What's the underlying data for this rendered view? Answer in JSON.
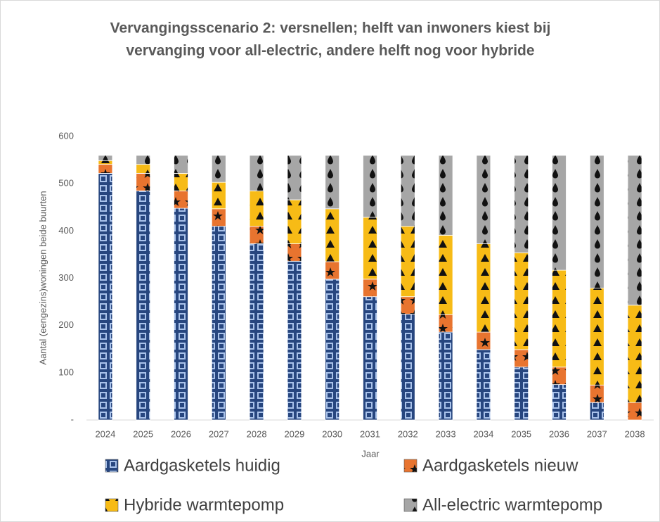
{
  "chart_data": {
    "type": "stacked-bar",
    "title": [
      "Vervangingsscenario 2: versnellen; helft van inwoners kiest bij",
      "vervanging voor all-electric, andere helft nog voor hybride"
    ],
    "x_label": "Jaar",
    "y_label": "Aantal (eengezins)woningen beide buurten",
    "categories": [
      "2024",
      "2025",
      "2026",
      "2027",
      "2028",
      "2029",
      "2030",
      "2031",
      "2032",
      "2033",
      "2034",
      "2035",
      "2036",
      "2037",
      "2038"
    ],
    "series": [
      {
        "name": "Aardgasketels huidig",
        "color": "#27467f",
        "values": [
          522,
          485,
          448,
          410,
          373,
          336,
          298,
          261,
          224,
          186,
          149,
          112,
          75,
          37,
          0
        ]
      },
      {
        "name": "Aardgasketels nieuw",
        "color": "#e8742f",
        "values": [
          19,
          37,
          37,
          37,
          37,
          37,
          37,
          37,
          37,
          37,
          37,
          37,
          37,
          37,
          37
        ]
      },
      {
        "name": "Hybride warmtepomp",
        "color": "#f7bb16",
        "values": [
          8,
          19,
          37,
          56,
          75,
          93,
          112,
          131,
          149,
          168,
          187,
          205,
          205,
          205,
          206
        ]
      },
      {
        "name": "All-electric warmtepomp",
        "color": "#a6a6a6",
        "values": [
          11,
          19,
          38,
          57,
          75,
          94,
          113,
          131,
          150,
          169,
          187,
          206,
          243,
          281,
          317
        ]
      }
    ],
    "ylim": [
      0,
      600
    ],
    "yticks": [
      {
        "value": 0,
        "label": "-"
      },
      100,
      200,
      300,
      400,
      500,
      600
    ]
  }
}
